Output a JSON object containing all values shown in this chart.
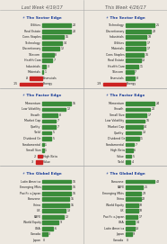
{
  "header_left": "Last Week 4/19/17",
  "header_right": "This Week 4/26/17",
  "bg_color": "#ede8e0",
  "bar_green": "#3a8c3a",
  "bar_red": "#cc2222",
  "title_color": "#1a3d99",
  "label_color": "#222222",
  "value_color": "#222222",
  "divider_color": "#aaaaaa",
  "sections": [
    {
      "title": "The Sector Edge",
      "col": 0,
      "items": [
        {
          "label": "Utilities",
          "value": 20
        },
        {
          "label": "Real Estate",
          "value": 20
        },
        {
          "label": "Cons Staples",
          "value": 15
        },
        {
          "label": "Technology",
          "value": 14
        },
        {
          "label": "Discretionary",
          "value": 12
        },
        {
          "label": "Telecom",
          "value": 8
        },
        {
          "label": "Health Care",
          "value": 7
        },
        {
          "label": "Industrials",
          "value": 3
        },
        {
          "label": "Materials",
          "value": 1
        },
        {
          "label": "Financials",
          "value": -8
        },
        {
          "label": "Energy",
          "value": -15
        }
      ]
    },
    {
      "title": "The Sector Edge",
      "col": 1,
      "items": [
        {
          "label": "Technology",
          "value": 25
        },
        {
          "label": "Discretionary",
          "value": 22
        },
        {
          "label": "Industrials",
          "value": 18
        },
        {
          "label": "Utilities",
          "value": 17
        },
        {
          "label": "Materials",
          "value": 17
        },
        {
          "label": "Cons Staples",
          "value": 16
        },
        {
          "label": "Real Estate",
          "value": 13
        },
        {
          "label": "Health Care",
          "value": 11
        },
        {
          "label": "Telecom",
          "value": 7
        },
        {
          "label": "Financials",
          "value": 8
        },
        {
          "label": "Energy",
          "value": -19
        }
      ]
    },
    {
      "title": "The Factor Edge",
      "col": 0,
      "items": [
        {
          "label": "Momentum",
          "value": 15
        },
        {
          "label": "Low Volatility",
          "value": 12
        },
        {
          "label": "Growth",
          "value": 8
        },
        {
          "label": "Market Cap",
          "value": 7
        },
        {
          "label": "Quality",
          "value": 7
        },
        {
          "label": "Yield",
          "value": 5
        },
        {
          "label": "Dividend Gr",
          "value": 5
        },
        {
          "label": "Fundamental",
          "value": 1
        },
        {
          "label": "Small Size",
          "value": 1
        },
        {
          "label": "High Beta",
          "value": -2
        },
        {
          "label": "Value",
          "value": -3
        }
      ]
    },
    {
      "title": "The Factor Edge",
      "col": 1,
      "items": [
        {
          "label": "Momentum",
          "value": 24
        },
        {
          "label": "Growth",
          "value": 20
        },
        {
          "label": "Small Size",
          "value": 17
        },
        {
          "label": "Low Volatility",
          "value": 16
        },
        {
          "label": "Market Cap",
          "value": 14
        },
        {
          "label": "Quality",
          "value": 13
        },
        {
          "label": "Dividend Gr",
          "value": 11
        },
        {
          "label": "Fundamental",
          "value": 7
        },
        {
          "label": "High Beta",
          "value": 6
        },
        {
          "label": "Value",
          "value": 5
        },
        {
          "label": "Yield",
          "value": 4
        }
      ]
    },
    {
      "title": "The Global Edge",
      "col": 0,
      "items": [
        {
          "label": "Latin America",
          "value": 16
        },
        {
          "label": "Emerging Mkts",
          "value": 16
        },
        {
          "label": "Pacific x-Japan",
          "value": 16
        },
        {
          "label": "Eurozone",
          "value": 15
        },
        {
          "label": "China",
          "value": 15
        },
        {
          "label": "UK",
          "value": 13
        },
        {
          "label": "EAFE",
          "value": 12
        },
        {
          "label": "World Equity",
          "value": 9
        },
        {
          "label": "USA",
          "value": 6
        },
        {
          "label": "Canada",
          "value": 3
        },
        {
          "label": "Japan",
          "value": 0
        }
      ]
    },
    {
      "title": "The Global Edge",
      "col": 1,
      "items": [
        {
          "label": "Eurozone",
          "value": 42
        },
        {
          "label": "EAFE",
          "value": 25
        },
        {
          "label": "Emerging Mkts",
          "value": 23
        },
        {
          "label": "China",
          "value": 22
        },
        {
          "label": "World Equity",
          "value": 18
        },
        {
          "label": "UK",
          "value": 18
        },
        {
          "label": "Pacific x-Japan",
          "value": 17
        },
        {
          "label": "USA",
          "value": 14
        },
        {
          "label": "Latin America",
          "value": 13
        },
        {
          "label": "Japan",
          "value": 9
        },
        {
          "label": "Canada",
          "value": 0
        }
      ]
    }
  ]
}
